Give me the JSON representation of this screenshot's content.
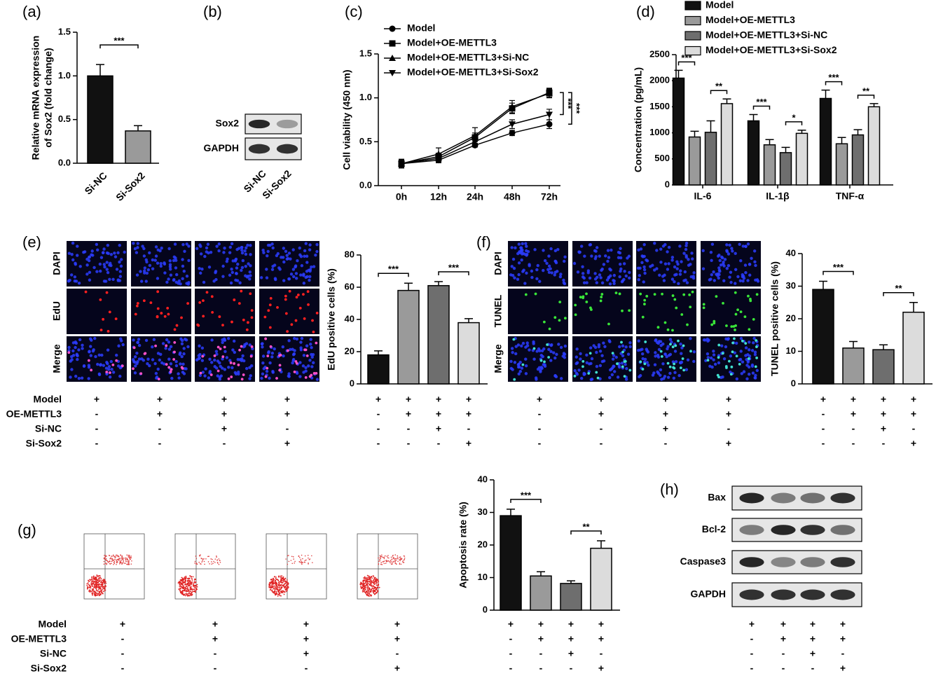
{
  "chart_data": [
    {
      "type": "bar",
      "panel": "(a)",
      "ylabel": [
        "Relative mRNA expression",
        "of Sox2 (fold change)"
      ],
      "categories": [
        "Si-NC",
        "Si-Sox2"
      ],
      "values": [
        1.0,
        0.37
      ],
      "errors": [
        0.13,
        0.06
      ],
      "colors": [
        "#111111",
        "#9a9a9a"
      ],
      "ylim": [
        0,
        1.5
      ],
      "yticks": [
        {
          "value": 0,
          "label": "0.0"
        },
        {
          "value": 0.5,
          "label": "0.5"
        },
        {
          "value": 1,
          "label": "1.0"
        },
        {
          "value": 1.5,
          "label": "1.5"
        }
      ],
      "significance": [
        {
          "from": 0,
          "to": 1,
          "label": "***"
        }
      ]
    },
    {
      "type": "line",
      "panel": "(c)",
      "ylabel": "Cell viability (450 nm)",
      "categories": [
        "0h",
        "12h",
        "24h",
        "48h",
        "72h"
      ],
      "ylim": [
        0,
        1.5
      ],
      "yticks": [
        {
          "value": 0,
          "label": "0.0"
        },
        {
          "value": 0.5,
          "label": "0.5"
        },
        {
          "value": 1,
          "label": "1.0"
        },
        {
          "value": 1.5,
          "label": "1.5"
        }
      ],
      "series": [
        {
          "name": "Model",
          "marker": "circle",
          "color": "#000000",
          "values": [
            0.25,
            0.29,
            0.46,
            0.6,
            0.7
          ],
          "errors": [
            0.04,
            0.03,
            0.02,
            0.03,
            0.05
          ]
        },
        {
          "name": "Model+OE-METTL3",
          "marker": "square",
          "color": "#000000",
          "values": [
            0.25,
            0.33,
            0.55,
            0.88,
            1.06
          ],
          "errors": [
            0.05,
            0.04,
            0.05,
            0.06,
            0.05
          ]
        },
        {
          "name": "Model+OE-METTL3+Si-NC",
          "marker": "triangle",
          "color": "#000000",
          "values": [
            0.25,
            0.36,
            0.57,
            0.9,
            1.05
          ],
          "errors": [
            0.04,
            0.07,
            0.09,
            0.07,
            0.05
          ]
        },
        {
          "name": "Model+OE-METTL3+Si-Sox2",
          "marker": "triangle-down",
          "color": "#000000",
          "values": [
            0.25,
            0.31,
            0.5,
            0.7,
            0.81
          ],
          "errors": [
            0.05,
            0.04,
            0.05,
            0.05,
            0.06
          ]
        }
      ],
      "significance": [
        {
          "from": 1,
          "to": 3,
          "label": "***"
        },
        {
          "from": 1,
          "to": 0,
          "label": "***"
        }
      ]
    },
    {
      "type": "grouped-bar",
      "panel": "(d)",
      "ylabel": "Concentration (pg/mL)",
      "categories": [
        "IL-6",
        "IL-1β",
        "TNF-α"
      ],
      "ylim": [
        0,
        2500
      ],
      "yticks": [
        0,
        500,
        1000,
        1500,
        2000,
        2500
      ],
      "series": [
        {
          "name": "Model",
          "color": "#111111",
          "values": [
            2050,
            1230,
            1660
          ],
          "errors": [
            150,
            120,
            160
          ]
        },
        {
          "name": "Model+OE-METTL3",
          "color": "#9a9a9a",
          "values": [
            920,
            770,
            790
          ],
          "errors": [
            110,
            100,
            120
          ]
        },
        {
          "name": "Model+OE-METTL3+Si-NC",
          "color": "#6e6e6e",
          "values": [
            1010,
            620,
            960
          ],
          "errors": [
            220,
            100,
            100
          ]
        },
        {
          "name": "Model+OE-METTL3+Si-Sox2",
          "color": "#dcdcdc",
          "values": [
            1560,
            990,
            1500
          ],
          "errors": [
            90,
            60,
            60
          ]
        }
      ],
      "significance": [
        {
          "category": 0,
          "from": 0,
          "to": 1,
          "label": "***"
        },
        {
          "category": 0,
          "from": 2,
          "to": 3,
          "label": "**"
        },
        {
          "category": 1,
          "from": 0,
          "to": 1,
          "label": "***"
        },
        {
          "category": 1,
          "from": 2,
          "to": 3,
          "label": "*"
        },
        {
          "category": 2,
          "from": 0,
          "to": 1,
          "label": "***"
        },
        {
          "category": 2,
          "from": 2,
          "to": 3,
          "label": "**"
        }
      ]
    },
    {
      "type": "bar",
      "panel": "(e)",
      "ylabel": "EdU positive cells (%)",
      "values": [
        18,
        58,
        61,
        38
      ],
      "errors": [
        2.5,
        4.5,
        2.5,
        2.5
      ],
      "colors": [
        "#111111",
        "#9a9a9a",
        "#6e6e6e",
        "#dcdcdc"
      ],
      "ylim": [
        0,
        80
      ],
      "yticks": [
        0,
        20,
        40,
        60,
        80
      ],
      "significance": [
        {
          "from": 0,
          "to": 1,
          "label": "***"
        },
        {
          "from": 2,
          "to": 3,
          "label": "***"
        }
      ]
    },
    {
      "type": "bar",
      "panel": "(f)",
      "ylabel": "TUNEL positive cells (%)",
      "values": [
        29,
        11,
        10.5,
        22
      ],
      "errors": [
        2.5,
        2,
        1.5,
        3
      ],
      "colors": [
        "#111111",
        "#9a9a9a",
        "#6e6e6e",
        "#dcdcdc"
      ],
      "ylim": [
        0,
        40
      ],
      "yticks": [
        0,
        10,
        20,
        30,
        40
      ],
      "significance": [
        {
          "from": 0,
          "to": 1,
          "label": "***"
        },
        {
          "from": 2,
          "to": 3,
          "label": "**"
        }
      ]
    },
    {
      "type": "bar",
      "panel": "(g)",
      "ylabel": "Apoptosis rate (%)",
      "values": [
        29,
        10.5,
        8.2,
        19
      ],
      "errors": [
        2,
        1.3,
        0.8,
        2.3
      ],
      "colors": [
        "#111111",
        "#9a9a9a",
        "#6e6e6e",
        "#dcdcdc"
      ],
      "ylim": [
        0,
        40
      ],
      "yticks": [
        0,
        10,
        20,
        30,
        40
      ],
      "significance": [
        {
          "from": 0,
          "to": 1,
          "label": "***"
        },
        {
          "from": 2,
          "to": 3,
          "label": "**"
        }
      ]
    }
  ],
  "blot_b": {
    "panel": "(b)",
    "rows": [
      "Sox2",
      "GAPDH"
    ],
    "lanes": [
      "Si-NC",
      "Si-Sox2"
    ]
  },
  "images_e": {
    "rows": [
      "DAPI",
      "EdU",
      "Merge"
    ]
  },
  "images_f": {
    "rows": [
      "DAPI",
      "TUNEL",
      "Merge"
    ]
  },
  "blot_h": {
    "panel": "(h)",
    "rows": [
      "Bax",
      "Bcl-2",
      "Caspase3",
      "GAPDH"
    ]
  },
  "conditions": {
    "labels": [
      "Model",
      "OE-METTL3",
      "Si-NC",
      "Si-Sox2"
    ],
    "values": [
      [
        "+",
        "+",
        "+",
        "+"
      ],
      [
        "-",
        "+",
        "+",
        "+"
      ],
      [
        "-",
        "-",
        "+",
        "-"
      ],
      [
        "-",
        "-",
        "-",
        "+"
      ]
    ]
  }
}
